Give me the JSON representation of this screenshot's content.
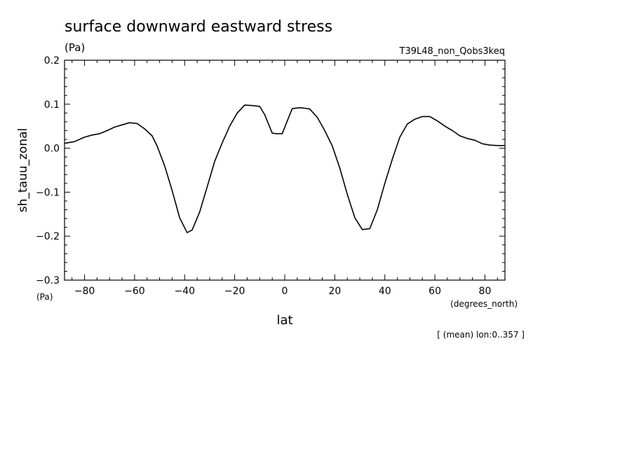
{
  "chart_data": {
    "type": "line",
    "title": "surface downward eastward stress",
    "units_label": "(Pa)",
    "run_label": "T39L48_non_Qobs3keq",
    "ylabel": "sh_tauu_zonal",
    "y_unit_label": "(Pa)",
    "xlabel": "lat",
    "x_unit_label": "(degrees_north)",
    "footnote": "[ (mean) lon:0..357 ]",
    "xlim": [
      -88,
      88
    ],
    "ylim": [
      -0.3,
      0.2
    ],
    "x_ticks": [
      -80,
      -60,
      -40,
      -20,
      0,
      20,
      40,
      60,
      80
    ],
    "x_tick_labels": [
      "−80",
      "−60",
      "−40",
      "−20",
      "0",
      "20",
      "40",
      "60",
      "80"
    ],
    "y_ticks": [
      -0.3,
      -0.2,
      -0.1,
      0.0,
      0.1,
      0.2
    ],
    "y_tick_labels": [
      "−0.3",
      "−0.2",
      "−0.1",
      "0.0",
      "0.1",
      "0.2"
    ],
    "grid": false,
    "line_color": "#000000",
    "series": [
      {
        "x": [
          -88,
          -84,
          -80,
          -77,
          -74,
          -71,
          -68,
          -65,
          -62,
          -59,
          -56,
          -53,
          -51,
          -48,
          -45,
          -42,
          -39,
          -37,
          -34,
          -31,
          -28,
          -25,
          -22,
          -19,
          -16,
          -13,
          -10,
          -8,
          -5,
          -3,
          -1,
          1,
          3,
          6,
          8,
          10,
          13,
          16,
          19,
          22,
          25,
          28,
          31,
          34,
          37,
          40,
          43,
          46,
          49,
          52,
          55,
          58,
          61,
          64,
          67,
          70,
          73,
          76,
          79,
          82,
          85,
          88
        ],
        "y": [
          0.011,
          0.015,
          0.025,
          0.03,
          0.033,
          0.04,
          0.048,
          0.053,
          0.058,
          0.056,
          0.044,
          0.028,
          0.005,
          -0.04,
          -0.096,
          -0.158,
          -0.192,
          -0.186,
          -0.145,
          -0.088,
          -0.03,
          0.012,
          0.05,
          0.08,
          0.098,
          0.097,
          0.095,
          0.076,
          0.034,
          0.033,
          0.033,
          0.062,
          0.09,
          0.092,
          0.091,
          0.089,
          0.07,
          0.04,
          0.005,
          -0.045,
          -0.105,
          -0.158,
          -0.185,
          -0.183,
          -0.14,
          -0.08,
          -0.025,
          0.025,
          0.055,
          0.066,
          0.072,
          0.072,
          0.062,
          0.05,
          0.04,
          0.028,
          0.022,
          0.018,
          0.01,
          0.007,
          0.006,
          0.006
        ]
      }
    ]
  }
}
